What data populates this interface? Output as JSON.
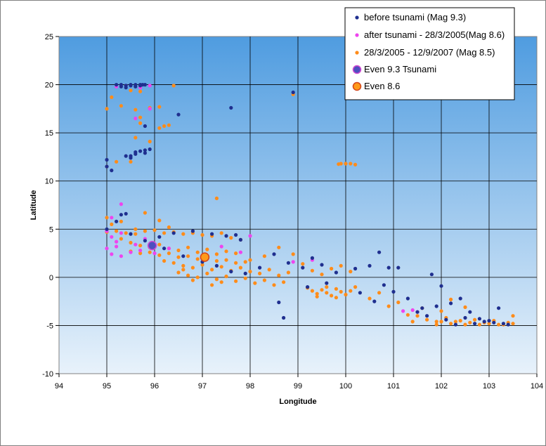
{
  "chart_data": {
    "type": "scatter",
    "title": "",
    "xlabel": "Longitude",
    "ylabel": "Latitude",
    "xlim": [
      94,
      104
    ],
    "ylim": [
      -10,
      25
    ],
    "xticks": [
      94,
      95,
      96,
      97,
      98,
      99,
      100,
      101,
      102,
      103,
      104
    ],
    "yticks": [
      -10,
      -5,
      0,
      5,
      10,
      15,
      20,
      25
    ],
    "grid": true,
    "legend_position": "top-right",
    "background": {
      "top": "#4f9ce0",
      "bottom": "#e8f2fb"
    },
    "series": [
      {
        "name": "before tsunami (Mag 9.3)",
        "color": "#1f2f8f",
        "marker": "dot",
        "points": [
          [
            95.3,
            20.0
          ],
          [
            95.4,
            19.9
          ],
          [
            95.5,
            20.0
          ],
          [
            95.6,
            20.0
          ],
          [
            95.7,
            19.9
          ],
          [
            95.75,
            20.0
          ],
          [
            95.8,
            20.0
          ],
          [
            95.6,
            19.8
          ],
          [
            95.4,
            19.7
          ],
          [
            95.2,
            20.0
          ],
          [
            95.3,
            19.8
          ],
          [
            95.5,
            19.9
          ],
          [
            95.7,
            20.0
          ],
          [
            96.5,
            16.9
          ],
          [
            97.6,
            17.6
          ],
          [
            98.9,
            19.2
          ],
          [
            95.8,
            15.7
          ],
          [
            95.5,
            12.6
          ],
          [
            95.6,
            13.0
          ],
          [
            95.7,
            13.1
          ],
          [
            95.8,
            13.2
          ],
          [
            95.9,
            13.3
          ],
          [
            95.6,
            12.8
          ],
          [
            95.5,
            12.4
          ],
          [
            95.4,
            12.6
          ],
          [
            95.8,
            12.9
          ],
          [
            95.0,
            12.2
          ],
          [
            95.0,
            11.5
          ],
          [
            95.1,
            11.1
          ],
          [
            95.3,
            6.5
          ],
          [
            95.4,
            6.6
          ],
          [
            95.2,
            5.8
          ],
          [
            95.0,
            5.0
          ],
          [
            95.5,
            4.5
          ],
          [
            95.8,
            3.8
          ],
          [
            96.1,
            4.2
          ],
          [
            96.4,
            4.6
          ],
          [
            96.8,
            4.8
          ],
          [
            97.2,
            4.5
          ],
          [
            97.5,
            4.3
          ],
          [
            97.7,
            4.4
          ],
          [
            97.8,
            3.9
          ],
          [
            96.2,
            3.0
          ],
          [
            96.6,
            2.2
          ],
          [
            97.0,
            1.6
          ],
          [
            97.3,
            1.2
          ],
          [
            97.6,
            0.6
          ],
          [
            97.9,
            0.4
          ],
          [
            98.2,
            1.0
          ],
          [
            98.5,
            2.4
          ],
          [
            98.8,
            1.5
          ],
          [
            99.1,
            1.0
          ],
          [
            99.3,
            2.0
          ],
          [
            99.5,
            1.3
          ],
          [
            99.8,
            0.5
          ],
          [
            100.2,
            0.9
          ],
          [
            100.5,
            1.2
          ],
          [
            100.7,
            2.6
          ],
          [
            100.9,
            1.0
          ],
          [
            98.6,
            -2.6
          ],
          [
            98.7,
            -4.2
          ],
          [
            99.2,
            -1.0
          ],
          [
            99.6,
            -0.6
          ],
          [
            100.3,
            -1.6
          ],
          [
            100.6,
            -2.5
          ],
          [
            100.8,
            -0.8
          ],
          [
            101.0,
            -1.5
          ],
          [
            101.1,
            1.0
          ],
          [
            101.3,
            -2.2
          ],
          [
            101.6,
            -3.2
          ],
          [
            101.9,
            -3.0
          ],
          [
            101.8,
            0.3
          ],
          [
            102.0,
            -0.9
          ],
          [
            102.2,
            -2.7
          ],
          [
            102.4,
            -2.2
          ],
          [
            102.6,
            -3.6
          ],
          [
            102.8,
            -4.3
          ],
          [
            103.0,
            -4.5
          ],
          [
            103.2,
            -3.2
          ],
          [
            103.3,
            -4.8
          ],
          [
            103.1,
            -4.7
          ],
          [
            102.9,
            -4.6
          ],
          [
            102.5,
            -4.2
          ],
          [
            102.3,
            -4.9
          ],
          [
            102.1,
            -4.4
          ],
          [
            101.7,
            -4.0
          ],
          [
            101.5,
            -3.6
          ],
          [
            103.4,
            -4.9
          ],
          [
            102.7,
            -4.8
          ]
        ]
      },
      {
        "name": "after tsunami - 28/3/2005(Mag 8.6)",
        "color": "#ee44ee",
        "marker": "dot",
        "points": [
          [
            95.2,
            19.8
          ],
          [
            95.4,
            19.9
          ],
          [
            95.7,
            19.7
          ],
          [
            95.9,
            19.9
          ],
          [
            95.9,
            17.5
          ],
          [
            95.6,
            16.5
          ],
          [
            95.3,
            7.6
          ],
          [
            95.1,
            6.2
          ],
          [
            95.0,
            4.8
          ],
          [
            95.1,
            4.2
          ],
          [
            95.2,
            3.7
          ],
          [
            95.0,
            3.0
          ],
          [
            95.1,
            2.4
          ],
          [
            95.3,
            2.2
          ],
          [
            95.5,
            2.6
          ],
          [
            95.6,
            3.4
          ],
          [
            95.8,
            4.0
          ],
          [
            95.3,
            4.6
          ],
          [
            95.7,
            2.8
          ],
          [
            96.0,
            2.5
          ],
          [
            96.3,
            3.0
          ],
          [
            97.4,
            3.2
          ],
          [
            97.8,
            2.6
          ],
          [
            98.0,
            4.3
          ],
          [
            98.9,
            1.6
          ],
          [
            99.3,
            1.8
          ],
          [
            101.4,
            -3.4
          ],
          [
            101.5,
            -3.6
          ],
          [
            101.2,
            -3.5
          ],
          [
            95.2,
            3.2
          ]
        ]
      },
      {
        "name": "28/3/2005 - 12/9/2007  (Mag 8.5)",
        "color": "#ff8c1a",
        "marker": "dot",
        "points": [
          [
            95.0,
            17.5
          ],
          [
            95.3,
            17.8
          ],
          [
            95.6,
            17.4
          ],
          [
            95.7,
            16.6
          ],
          [
            95.9,
            17.6
          ],
          [
            95.7,
            19.3
          ],
          [
            95.5,
            19.4
          ],
          [
            96.4,
            19.9
          ],
          [
            95.1,
            18.7
          ],
          [
            98.9,
            19.0
          ],
          [
            95.7,
            16.0
          ],
          [
            96.2,
            15.7
          ],
          [
            96.1,
            15.5
          ],
          [
            96.3,
            15.8
          ],
          [
            96.1,
            17.7
          ],
          [
            95.6,
            14.5
          ],
          [
            95.9,
            14.1
          ],
          [
            95.5,
            12.0
          ],
          [
            95.0,
            11.5
          ],
          [
            95.2,
            12.0
          ],
          [
            95.0,
            6.2
          ],
          [
            95.1,
            5.5
          ],
          [
            95.3,
            5.8
          ],
          [
            95.6,
            5.0
          ],
          [
            95.8,
            6.7
          ],
          [
            96.1,
            5.9
          ],
          [
            96.3,
            5.2
          ],
          [
            97.3,
            8.2
          ],
          [
            95.0,
            4.7
          ],
          [
            95.2,
            4.8
          ],
          [
            95.4,
            4.6
          ],
          [
            95.6,
            4.5
          ],
          [
            95.8,
            4.8
          ],
          [
            96.0,
            4.9
          ],
          [
            96.2,
            4.6
          ],
          [
            96.4,
            4.7
          ],
          [
            96.6,
            4.5
          ],
          [
            96.8,
            4.6
          ],
          [
            97.0,
            4.4
          ],
          [
            97.2,
            4.3
          ],
          [
            97.4,
            4.6
          ],
          [
            97.6,
            4.1
          ],
          [
            97.8,
            3.9
          ],
          [
            95.3,
            4.0
          ],
          [
            95.5,
            3.6
          ],
          [
            95.7,
            3.3
          ],
          [
            95.9,
            3.1
          ],
          [
            96.1,
            3.4
          ],
          [
            96.3,
            3.0
          ],
          [
            96.5,
            2.8
          ],
          [
            96.7,
            3.1
          ],
          [
            96.9,
            2.6
          ],
          [
            97.1,
            2.9
          ],
          [
            97.3,
            2.4
          ],
          [
            97.5,
            2.7
          ],
          [
            97.7,
            2.5
          ],
          [
            95.5,
            2.7
          ],
          [
            95.7,
            2.5
          ],
          [
            95.9,
            2.6
          ],
          [
            96.1,
            2.3
          ],
          [
            96.3,
            2.5
          ],
          [
            96.5,
            2.1
          ],
          [
            96.7,
            2.2
          ],
          [
            96.9,
            1.9
          ],
          [
            97.1,
            2.0
          ],
          [
            97.3,
            1.7
          ],
          [
            97.5,
            1.8
          ],
          [
            97.7,
            1.5
          ],
          [
            97.9,
            1.6
          ],
          [
            96.2,
            1.7
          ],
          [
            96.4,
            1.5
          ],
          [
            96.6,
            1.2
          ],
          [
            96.8,
            1.0
          ],
          [
            97.0,
            1.3
          ],
          [
            97.2,
            0.8
          ],
          [
            97.4,
            1.1
          ],
          [
            97.6,
            0.7
          ],
          [
            97.8,
            1.0
          ],
          [
            98.0,
            0.6
          ],
          [
            98.2,
            0.4
          ],
          [
            98.4,
            0.8
          ],
          [
            98.6,
            0.2
          ],
          [
            98.8,
            0.5
          ],
          [
            96.5,
            0.5
          ],
          [
            96.7,
            0.2
          ],
          [
            96.9,
            0.0
          ],
          [
            97.1,
            0.4
          ],
          [
            97.3,
            -0.2
          ],
          [
            97.5,
            0.1
          ],
          [
            97.7,
            -0.4
          ],
          [
            97.9,
            -0.1
          ],
          [
            98.1,
            -0.6
          ],
          [
            98.3,
            -0.3
          ],
          [
            98.5,
            -0.8
          ],
          [
            98.7,
            -0.5
          ],
          [
            97.2,
            -0.8
          ],
          [
            97.4,
            -0.5
          ],
          [
            96.8,
            -0.3
          ],
          [
            96.6,
            0.8
          ],
          [
            98.0,
            1.8
          ],
          [
            98.3,
            2.2
          ],
          [
            98.6,
            3.1
          ],
          [
            98.9,
            2.4
          ],
          [
            99.1,
            1.4
          ],
          [
            99.3,
            0.7
          ],
          [
            99.5,
            0.3
          ],
          [
            99.7,
            0.9
          ],
          [
            99.9,
            1.2
          ],
          [
            100.1,
            0.6
          ],
          [
            99.2,
            -1.1
          ],
          [
            99.3,
            -1.4
          ],
          [
            99.4,
            -1.7
          ],
          [
            99.5,
            -1.3
          ],
          [
            99.6,
            -1.6
          ],
          [
            99.7,
            -1.9
          ],
          [
            99.8,
            -1.2
          ],
          [
            99.9,
            -1.5
          ],
          [
            100.0,
            -1.8
          ],
          [
            100.1,
            -1.4
          ],
          [
            100.2,
            -1.0
          ],
          [
            99.4,
            -2.0
          ],
          [
            99.6,
            -1.0
          ],
          [
            99.8,
            -2.1
          ],
          [
            99.9,
            11.8
          ],
          [
            100.0,
            11.8
          ],
          [
            100.1,
            11.8
          ],
          [
            100.2,
            11.7
          ],
          [
            99.85,
            11.75
          ],
          [
            100.5,
            -2.2
          ],
          [
            100.7,
            -1.6
          ],
          [
            100.9,
            -3.0
          ],
          [
            101.1,
            -2.6
          ],
          [
            101.3,
            -3.9
          ],
          [
            101.5,
            -4.0
          ],
          [
            101.7,
            -4.4
          ],
          [
            101.9,
            -4.6
          ],
          [
            102.0,
            -4.6
          ],
          [
            102.2,
            -4.8
          ],
          [
            102.4,
            -4.5
          ],
          [
            102.6,
            -4.7
          ],
          [
            102.8,
            -4.9
          ],
          [
            103.0,
            -4.8
          ],
          [
            103.2,
            -4.9
          ],
          [
            103.4,
            -4.7
          ],
          [
            103.5,
            -4.8
          ],
          [
            102.1,
            -4.2
          ],
          [
            102.3,
            -4.6
          ],
          [
            102.5,
            -4.9
          ],
          [
            102.7,
            -4.4
          ],
          [
            102.9,
            -4.7
          ],
          [
            103.1,
            -4.5
          ],
          [
            103.3,
            -4.9
          ],
          [
            103.5,
            -4.0
          ],
          [
            102.2,
            -2.3
          ],
          [
            102.5,
            -3.1
          ],
          [
            101.9,
            -4.9
          ],
          [
            102.0,
            -3.5
          ],
          [
            101.4,
            -4.6
          ],
          [
            101.6,
            -3.2
          ]
        ]
      },
      {
        "name": "Even 9.3 Tsunami",
        "color": "#4e4fbf",
        "edge_color": "#d24ad2",
        "marker": "large",
        "points": [
          [
            95.95,
            3.3
          ]
        ]
      },
      {
        "name": "Even 8.6",
        "color": "#ff9a1a",
        "edge_color": "#d4451a",
        "marker": "large",
        "points": [
          [
            97.05,
            2.1
          ]
        ]
      }
    ]
  }
}
